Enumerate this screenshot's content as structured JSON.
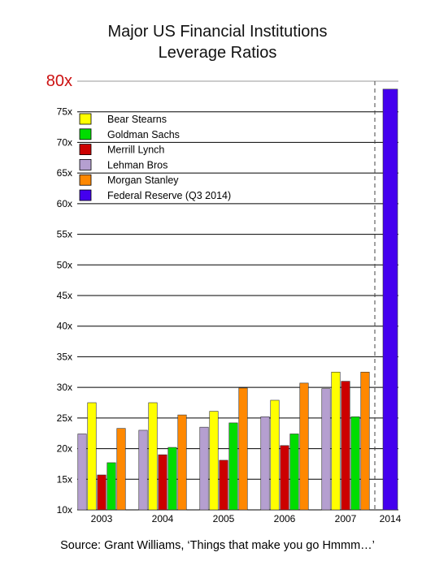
{
  "title_line1": "Major US Financial Institutions",
  "title_line2": "Leverage Ratios",
  "source": "Source: Grant Williams, ‘Things that make you go Hmmm…’",
  "chart_data": {
    "type": "bar",
    "title": "Major US Financial Institutions Leverage Ratios",
    "categories": [
      "2003",
      "2004",
      "2005",
      "2006",
      "2007",
      "2014"
    ],
    "ylim": [
      10,
      80
    ],
    "yticks": [
      {
        "value": 10,
        "label": "10x"
      },
      {
        "value": 15,
        "label": "15x"
      },
      {
        "value": 20,
        "label": "20x"
      },
      {
        "value": 25,
        "label": "25x"
      },
      {
        "value": 30,
        "label": "30x"
      },
      {
        "value": 35,
        "label": "35x"
      },
      {
        "value": 40,
        "label": "40x"
      },
      {
        "value": 45,
        "label": "45x"
      },
      {
        "value": 50,
        "label": "50x"
      },
      {
        "value": 55,
        "label": "55x"
      },
      {
        "value": 60,
        "label": "60x"
      },
      {
        "value": 65,
        "label": "65x"
      },
      {
        "value": 70,
        "label": "70x"
      },
      {
        "value": 75,
        "label": "75x"
      },
      {
        "value": 80,
        "label": "80x"
      }
    ],
    "grid": true,
    "legend_position": "top-left",
    "separator_before": "2014",
    "series": [
      {
        "name": "Lehman Bros",
        "color": "#b59fd0",
        "values": [
          22.4,
          23.0,
          23.5,
          25.2,
          29.8,
          null
        ]
      },
      {
        "name": "Bear Stearns",
        "color": "#ffff00",
        "values": [
          27.5,
          27.5,
          26.1,
          27.9,
          32.5,
          null
        ]
      },
      {
        "name": "Merrill Lynch",
        "color": "#cc0000",
        "values": [
          15.7,
          19.0,
          18.1,
          20.5,
          31.0,
          null
        ]
      },
      {
        "name": "Goldman Sachs",
        "color": "#00dd00",
        "values": [
          17.7,
          20.2,
          24.2,
          22.4,
          25.2,
          null
        ]
      },
      {
        "name": "Morgan Stanley",
        "color": "#ff8800",
        "values": [
          23.3,
          25.5,
          29.9,
          30.7,
          32.5,
          null
        ]
      },
      {
        "name": "Federal Reserve (Q3 2014)",
        "color": "#4400ee",
        "values": [
          null,
          null,
          null,
          null,
          null,
          78.7
        ]
      }
    ],
    "legend_order": [
      "Bear Stearns",
      "Goldman Sachs",
      "Merrill Lynch",
      "Lehman Bros",
      "Morgan Stanley",
      "Federal Reserve (Q3 2014)"
    ]
  }
}
